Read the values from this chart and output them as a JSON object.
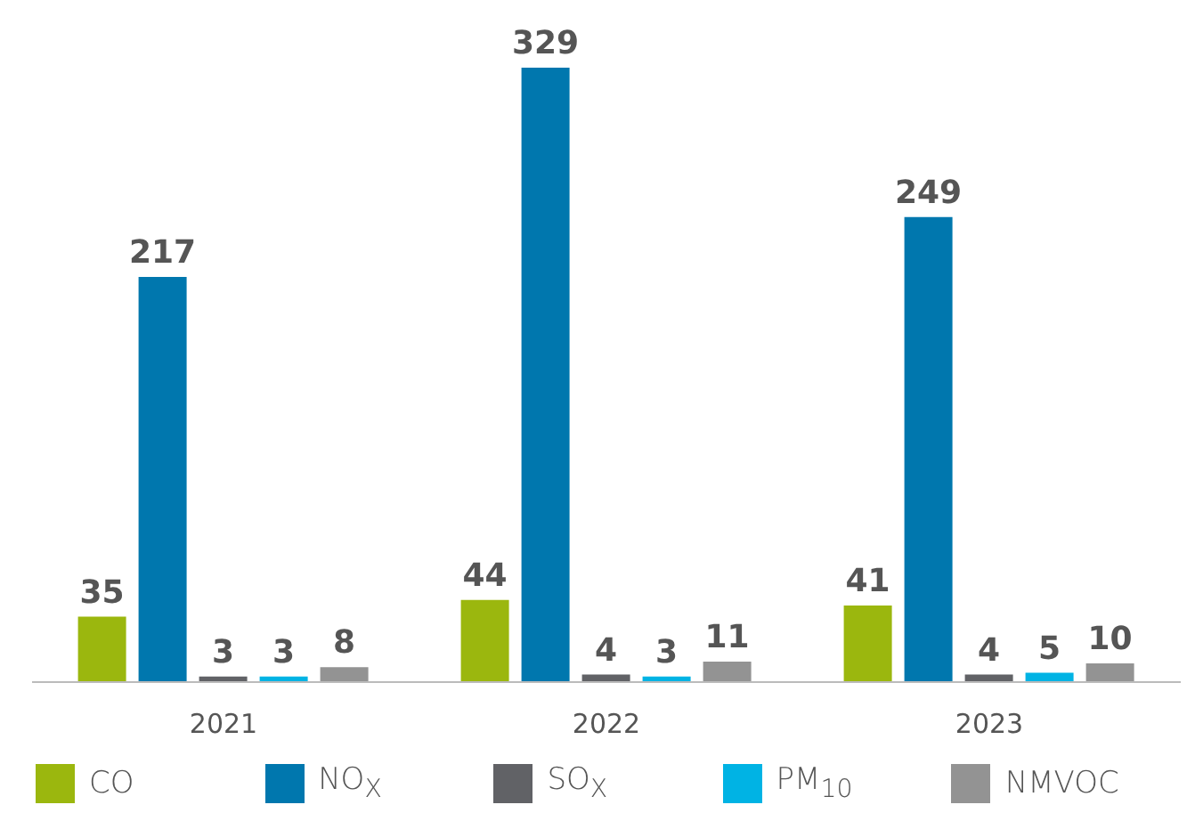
{
  "chart_data": {
    "type": "bar",
    "categories": [
      "2021",
      "2022",
      "2023"
    ],
    "series": [
      {
        "name": "CO",
        "color": "#9bb70e",
        "values": [
          35,
          44,
          41
        ]
      },
      {
        "name": "NO$_{X}$",
        "color": "#0077ae",
        "values": [
          217,
          329,
          249
        ]
      },
      {
        "name": "SO$_{X}$",
        "color": "#616266",
        "values": [
          3,
          4,
          4
        ]
      },
      {
        "name": "PM$_{10}$",
        "color": "#00b3e4",
        "values": [
          3,
          3,
          5
        ]
      },
      {
        "name": "NMVOC",
        "color": "#939393",
        "values": [
          8,
          11,
          10
        ]
      }
    ],
    "data_labels": true,
    "legend": "bottom left",
    "grid": false
  }
}
